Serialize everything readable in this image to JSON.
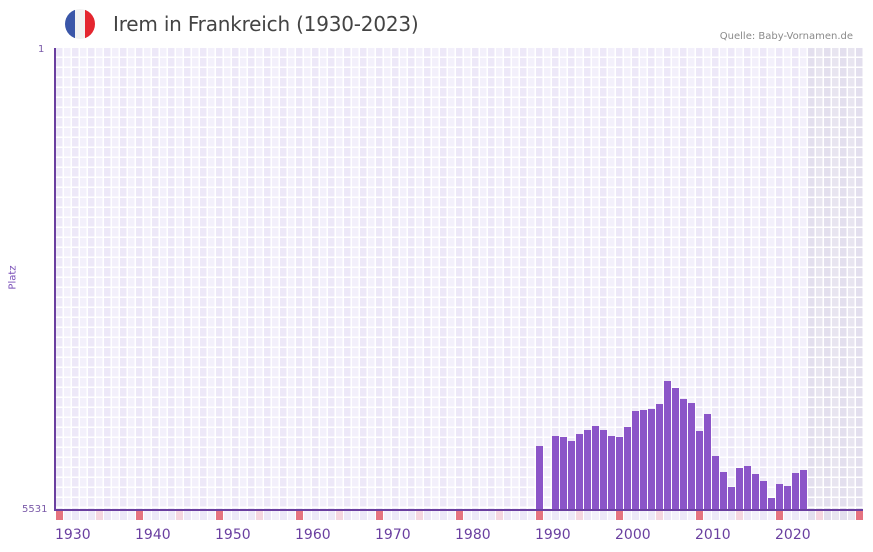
{
  "header": {
    "title": "Irem in Frankreich (1930-2023)",
    "source": "Quelle: Baby-Vornamen.de",
    "flag_colors": [
      "#3a56a8",
      "#f2f2f2",
      "#e4262f"
    ]
  },
  "axis": {
    "y_top_label": "1",
    "y_bottom_label": "5531",
    "y_title": "Platz",
    "x_labels": [
      "1930",
      "1940",
      "1950",
      "1960",
      "1970",
      "1980",
      "1990",
      "2000",
      "2010",
      "2020"
    ]
  },
  "colors": {
    "bar": "#8b55c8",
    "axis": "#6a3fa0",
    "tick_decade": "#e57380",
    "tick_half": "#f5d6e0",
    "grid_a": "#ede8f8",
    "grid_b": "#f3f0fb",
    "future_a": "#e3dfee",
    "future_b": "#e8e5f0"
  },
  "chart_data": {
    "type": "bar",
    "title": "Irem in Frankreich (1930-2023)",
    "xlabel": "",
    "ylabel": "Platz",
    "ylim": [
      5531,
      1
    ],
    "y_inverted": true,
    "x_range": [
      1930,
      2030
    ],
    "grid": true,
    "legend": null,
    "annotations": [
      "Quelle: Baby-Vornamen.de"
    ],
    "x": [
      1990,
      1992,
      1993,
      1994,
      1995,
      1996,
      1997,
      1998,
      1999,
      2000,
      2001,
      2002,
      2003,
      2004,
      2005,
      2006,
      2007,
      2008,
      2009,
      2010,
      2011,
      2012,
      2013,
      2014,
      2015,
      2016,
      2017,
      2018,
      2019,
      2020,
      2021,
      2022,
      2023
    ],
    "values": [
      4770,
      4660,
      4670,
      4710,
      4630,
      4580,
      4530,
      4580,
      4660,
      4670,
      4550,
      4360,
      4340,
      4330,
      4270,
      3990,
      4080,
      4210,
      4260,
      4590,
      4390,
      4900,
      5090,
      5270,
      5040,
      5020,
      5110,
      5200,
      5400,
      5230,
      5260,
      5100,
      5060
    ]
  }
}
